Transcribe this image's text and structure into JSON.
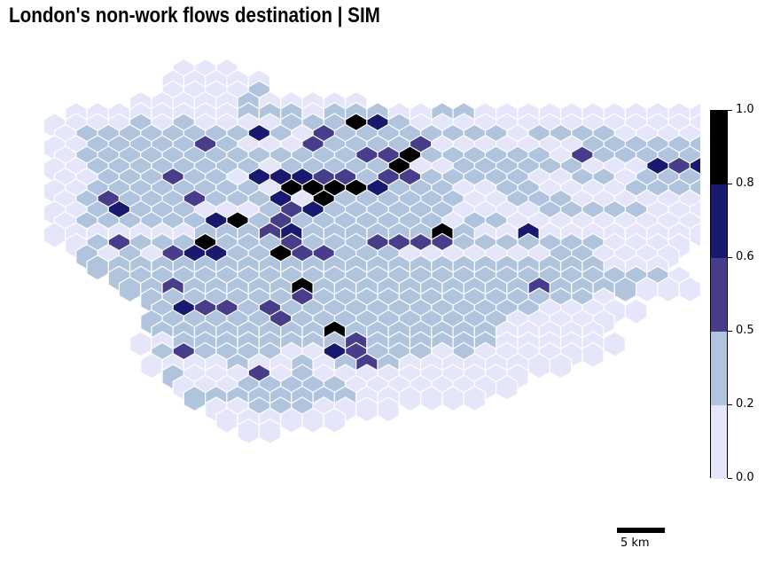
{
  "title": "London's non-work flows destination | SIM",
  "legend": {
    "bins": [
      {
        "from": 0.0,
        "to": 0.2,
        "color": "#e6e6fa"
      },
      {
        "from": 0.2,
        "to": 0.5,
        "color": "#b0c4de"
      },
      {
        "from": 0.5,
        "to": 0.6,
        "color": "#483d8b"
      },
      {
        "from": 0.6,
        "to": 0.8,
        "color": "#191970"
      },
      {
        "from": 0.8,
        "to": 1.0,
        "color": "#000000"
      }
    ],
    "tick_labels": [
      "0.0",
      "0.2",
      "0.5",
      "0.6",
      "0.8",
      "1.0"
    ]
  },
  "scale_bar": {
    "label": "5 km"
  },
  "map_rows": [
    {
      "row": 0,
      "first_col": 12,
      "classes": "000"
    },
    {
      "row": 1,
      "first_col": 11,
      "classes": "00000"
    },
    {
      "row": 2,
      "first_col": 11,
      "classes": "00001"
    },
    {
      "row": 3,
      "first_col": 8,
      "classes": "00000100000"
    },
    {
      "row": 4,
      "first_col": 2,
      "classes": "0000000011101110011000000000000000"
    },
    {
      "row": 5,
      "first_col": 0,
      "classes": "000010100001114310000000000000010000"
    },
    {
      "row": 6,
      "first_col": 1,
      "classes": "0111111113102111111110111100000"
    },
    {
      "row": 7,
      "first_col": 0,
      "classes": "0011111210002111120000000111111110000"
    },
    {
      "row": 8,
      "first_col": 1,
      "classes": "0111111111111122411111102111111111000"
    },
    {
      "row": 9,
      "first_col": 0,
      "classes": "00111111110111114001111110003232111000"
    },
    {
      "row": 10,
      "first_col": 1,
      "classes": "0011121103332212211111001101111000000"
    },
    {
      "row": 11,
      "first_col": 0,
      "classes": "001111111104444311100110000111111000"
    },
    {
      "row": 12,
      "first_col": 1,
      "classes": "01211121113041111110011100000000000"
    },
    {
      "row": 13,
      "first_col": 0,
      "classes": "00131110001231111110000111110000000"
    },
    {
      "row": 14,
      "first_col": 1,
      "classes": "0111111341211111110110000000000"
    },
    {
      "row": 15,
      "first_col": 0,
      "classes": "00000001112311111141003000000000"
    },
    {
      "row": 16,
      "first_col": 2,
      "classes": "01211141112111222211111110000"
    },
    {
      "row": 17,
      "first_col": 3,
      "classes": "1010233114221110000000110000"
    },
    {
      "row": 18,
      "first_col": 4,
      "classes": "111111111111111111111111000"
    },
    {
      "row": 19,
      "first_col": 6,
      "classes": "111111111111111111111111110"
    },
    {
      "row": 20,
      "first_col": 7,
      "classes": "112111114111111111121111000"
    },
    {
      "row": 21,
      "first_col": 9,
      "classes": "1111111211111111111110"
    },
    {
      "row": 22,
      "first_col": 10,
      "classes": "13221211111111111100000"
    },
    {
      "row": 23,
      "first_col": 9,
      "classes": "1111112111111111100000"
    },
    {
      "row": 24,
      "first_col": 10,
      "classes": "111111114111111100000"
    },
    {
      "row": 25,
      "first_col": 8,
      "classes": "00111111112111111000000"
    },
    {
      "row": 26,
      "first_col": 10,
      "classes": "121111003211101000000"
    },
    {
      "row": 27,
      "first_col": 9,
      "classes": "00001001012100000000"
    },
    {
      "row": 28,
      "first_col": 11,
      "classes": "10002010000000000"
    },
    {
      "row": 29,
      "first_col": 12,
      "classes": "0001111100000000"
    },
    {
      "row": 30,
      "first_col": 13,
      "classes": "11111111000000"
    },
    {
      "row": 31,
      "first_col": 15,
      "classes": "001110000"
    },
    {
      "row": 32,
      "first_col": 16,
      "classes": "000000"
    },
    {
      "row": 33,
      "first_col": 18,
      "classes": "00"
    }
  ]
}
